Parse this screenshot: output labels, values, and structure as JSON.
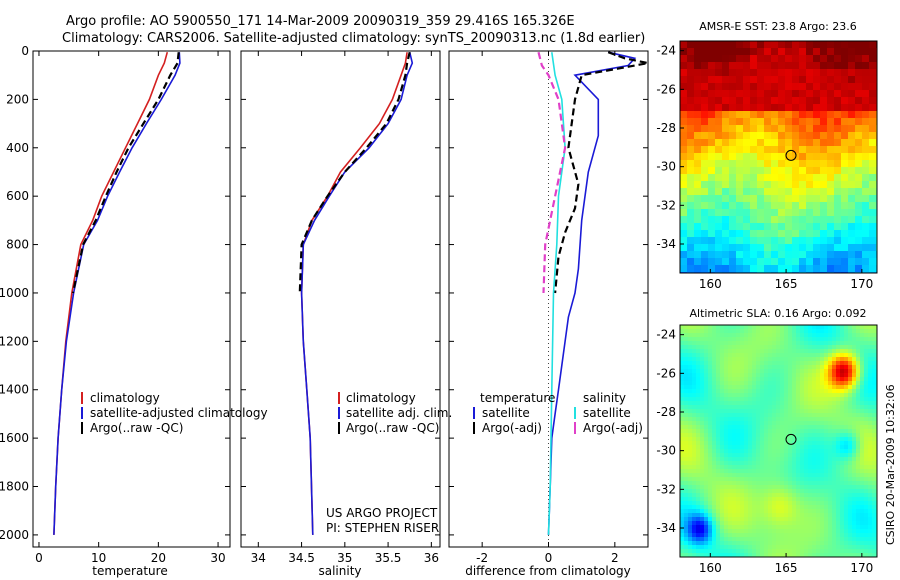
{
  "header": {
    "line1": "Argo profile: AO 5900550_171 14-Mar-2009 20090319_359 29.416S 165.326E",
    "line2": "Climatology: CARS2006. Satellite-adjusted climatology: synTS_20090313.nc (1.8d earlier)"
  },
  "footer": {
    "project": "US ARGO PROJECT",
    "pi": "PI: STEPHEN RISER",
    "stamp": "CSIRO 20-Mar-2009 10:32:06"
  },
  "colors": {
    "climatology": "#d42020",
    "satellite": "#1a1ad6",
    "argo": "#000000",
    "salinity_sat": "#22e0e0",
    "salinity_argo": "#e040c8"
  },
  "chart_data": [
    {
      "type": "line",
      "id": "temperature",
      "xlabel": "temperature",
      "xlim": [
        -1,
        32
      ],
      "ylim": [
        2050,
        0
      ],
      "y_reversed": true,
      "xticks": [
        0,
        10,
        20,
        30
      ],
      "yticks": [
        0,
        200,
        400,
        600,
        800,
        1000,
        1200,
        1400,
        1600,
        1800,
        2000
      ],
      "legend": [
        "climatology",
        "satellite-adjusted climatology",
        "Argo(..raw -QC)"
      ],
      "legend_placement": "lower-right",
      "series": [
        {
          "name": "climatology",
          "style": "solid",
          "color": "#d42020",
          "x": [
            21.5,
            21.0,
            20.0,
            18.5,
            16.5,
            14.5,
            12.5,
            10.5,
            9.0,
            7.0,
            5.5,
            4.5,
            3.8,
            3.2,
            2.8,
            2.5
          ],
          "y": [
            5,
            50,
            100,
            200,
            300,
            400,
            500,
            600,
            700,
            800,
            1000,
            1200,
            1400,
            1600,
            1800,
            2000
          ]
        },
        {
          "name": "satellite-adjusted climatology",
          "style": "solid",
          "color": "#1a1ad6",
          "x": [
            23.5,
            23.6,
            22.8,
            20.5,
            18.0,
            15.6,
            13.5,
            11.5,
            9.8,
            7.5,
            5.8,
            4.6,
            3.8,
            3.2,
            2.8,
            2.5
          ],
          "y": [
            5,
            50,
            100,
            200,
            300,
            400,
            500,
            600,
            700,
            800,
            1000,
            1200,
            1400,
            1600,
            1800,
            2000
          ]
        },
        {
          "name": "Argo(..raw -QC)",
          "style": "dashed",
          "color": "#000000",
          "x": [
            23.4,
            23.2,
            22.0,
            20.0,
            17.5,
            15.0,
            13.0,
            11.2,
            9.5,
            7.4,
            5.7
          ],
          "y": [
            5,
            50,
            100,
            200,
            300,
            400,
            500,
            600,
            700,
            800,
            1000
          ]
        }
      ]
    },
    {
      "type": "line",
      "id": "salinity",
      "xlabel": "salinity",
      "xlim": [
        33.8,
        36.1
      ],
      "ylim": [
        2050,
        0
      ],
      "y_reversed": true,
      "xticks": [
        34,
        34.5,
        35,
        35.5,
        36
      ],
      "legend": [
        "climatology",
        "satellite adj. clim.",
        "Argo(..raw -QC)"
      ],
      "legend_placement": "lower-right",
      "series": [
        {
          "name": "climatology",
          "style": "solid",
          "color": "#d42020",
          "x": [
            35.72,
            35.7,
            35.65,
            35.55,
            35.4,
            35.18,
            34.95,
            34.8,
            34.62,
            34.52,
            34.5,
            34.52,
            34.56,
            34.6,
            34.63
          ],
          "y": [
            5,
            50,
            100,
            200,
            300,
            400,
            500,
            600,
            700,
            800,
            1000,
            1200,
            1400,
            1600,
            2000
          ]
        },
        {
          "name": "satellite adj. clim.",
          "style": "solid",
          "color": "#1a1ad6",
          "x": [
            35.75,
            35.78,
            35.72,
            35.65,
            35.5,
            35.28,
            35.0,
            34.82,
            34.65,
            34.52,
            34.5,
            34.52,
            34.56,
            34.6,
            34.63
          ],
          "y": [
            5,
            50,
            100,
            200,
            300,
            400,
            500,
            600,
            700,
            800,
            1000,
            1200,
            1400,
            1600,
            2000
          ]
        },
        {
          "name": "Argo(..raw -QC)",
          "style": "dashed",
          "color": "#000000",
          "x": [
            35.75,
            35.72,
            35.7,
            35.62,
            35.48,
            35.25,
            35.0,
            34.8,
            34.62,
            34.5,
            34.48
          ],
          "y": [
            5,
            50,
            100,
            200,
            300,
            400,
            500,
            600,
            700,
            800,
            1000
          ]
        }
      ]
    },
    {
      "type": "line",
      "id": "difference",
      "xlabel": "difference from climatology",
      "xlim": [
        -3,
        3
      ],
      "ylim": [
        2050,
        0
      ],
      "y_reversed": true,
      "xticks": [
        -2,
        0,
        2
      ],
      "legend": [
        "temperature",
        "satellite",
        "Argo(-adj)",
        "salinity",
        "satellite",
        "Argo(-adj)"
      ],
      "legend_placement": "lower-center",
      "series": [
        {
          "name": "temperature satellite",
          "style": "solid",
          "color": "#1a1ad6",
          "x": [
            1.8,
            2.6,
            2.4,
            0.8,
            1.5,
            1.5,
            1.2,
            1.0,
            0.9,
            0.8,
            0.6,
            0.5,
            0.4,
            0.3,
            0.2,
            0.1,
            0.05,
            0.0
          ],
          "y": [
            5,
            30,
            60,
            100,
            200,
            350,
            500,
            700,
            900,
            1000,
            1100,
            1200,
            1300,
            1400,
            1500,
            1600,
            1800,
            2000
          ]
        },
        {
          "name": "temperature Argo(-adj)",
          "style": "dashed",
          "color": "#000000",
          "x": [
            1.8,
            2.3,
            3.0,
            1.0,
            0.8,
            0.6,
            0.9,
            0.8,
            0.5,
            0.3,
            0.2
          ],
          "y": [
            5,
            30,
            50,
            100,
            200,
            400,
            550,
            650,
            750,
            850,
            1000
          ]
        },
        {
          "name": "salinity satellite",
          "style": "solid",
          "color": "#22e0e0",
          "x": [
            0.1,
            0.2,
            0.4,
            0.5,
            0.3,
            0.25,
            0.15,
            0.1,
            0.05,
            0.0
          ],
          "y": [
            5,
            100,
            200,
            400,
            600,
            800,
            1000,
            1400,
            1800,
            2000
          ]
        },
        {
          "name": "salinity Argo(-adj)",
          "style": "dashed",
          "color": "#e040c8",
          "x": [
            -0.3,
            -0.2,
            0.0,
            0.3,
            0.5,
            0.2,
            -0.1,
            -0.15
          ],
          "y": [
            5,
            60,
            100,
            200,
            400,
            600,
            800,
            1000
          ]
        }
      ]
    },
    {
      "type": "heatmap",
      "id": "sst_map",
      "title": "AMSR-E SST: 23.8  Argo: 23.6",
      "xticks": [
        160,
        165,
        170
      ],
      "yticks": [
        -24,
        -26,
        -28,
        -30,
        -32,
        -34
      ],
      "xlim": [
        158,
        171
      ],
      "ylim": [
        -35.5,
        -23.5
      ],
      "marker": {
        "lon": 165.326,
        "lat": -29.416
      }
    },
    {
      "type": "heatmap",
      "id": "sla_map",
      "title": "Altimetric SLA: 0.16  Argo: 0.092",
      "xticks": [
        160,
        165,
        170
      ],
      "yticks": [
        -24,
        -26,
        -28,
        -30,
        -32,
        -34
      ],
      "xlim": [
        158,
        171
      ],
      "ylim": [
        -35.5,
        -23.5
      ],
      "marker": {
        "lon": 165.326,
        "lat": -29.416
      }
    }
  ]
}
